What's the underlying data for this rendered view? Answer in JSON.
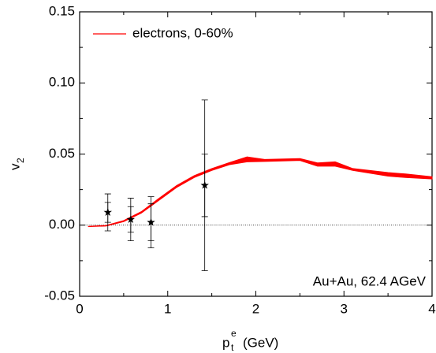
{
  "chart_data": {
    "type": "band_points",
    "x_label": {
      "base": "p",
      "sub": "t",
      "sup": "e",
      "unit": "(GeV)"
    },
    "y_label": {
      "base": "v",
      "sub": "2"
    },
    "annotation": "Au+Au, 62.4 AGeV",
    "xlim": [
      0,
      4
    ],
    "xticks": [
      0,
      1,
      2,
      3,
      4
    ],
    "ylim": [
      -0.05,
      0.15
    ],
    "yticks": [
      {
        "value": -0.05,
        "label": "-0.05"
      },
      {
        "value": 0,
        "label": "0.00"
      },
      {
        "value": 0.05,
        "label": "0.05"
      },
      {
        "value": 0.1,
        "label": "0.10"
      },
      {
        "value": 0.15,
        "label": "0.15"
      }
    ],
    "series": [
      {
        "name": "electrons, 0-60%",
        "color": "#ff0000",
        "x": [
          0.1,
          0.3,
          0.5,
          0.7,
          0.9,
          1.1,
          1.3,
          1.5,
          1.7,
          1.9,
          2.1,
          2.5,
          2.7,
          2.9,
          3.1,
          3.5,
          3.7,
          4.0
        ],
        "lower": [
          -0.001,
          -0.0006,
          0.0025,
          0.0085,
          0.0175,
          0.0265,
          0.0335,
          0.0385,
          0.0425,
          0.0445,
          0.0448,
          0.0455,
          0.0415,
          0.0415,
          0.0385,
          0.0345,
          0.0335,
          0.0325
        ],
        "upper": [
          -0.0008,
          -0.0002,
          0.0032,
          0.0095,
          0.0188,
          0.0278,
          0.0348,
          0.0398,
          0.044,
          0.048,
          0.0462,
          0.0468,
          0.0438,
          0.0445,
          0.0398,
          0.037,
          0.036,
          0.034
        ]
      },
      {
        "color": "#000000",
        "x": [
          0.32,
          0.58,
          0.81,
          1.42
        ],
        "values": [
          0.009,
          0.004,
          0.002,
          0.028
        ],
        "stat_err": [
          0.007,
          0.009,
          0.013,
          0.022
        ],
        "sys_err": [
          0.013,
          0.015,
          0.018,
          0.06
        ]
      }
    ]
  }
}
